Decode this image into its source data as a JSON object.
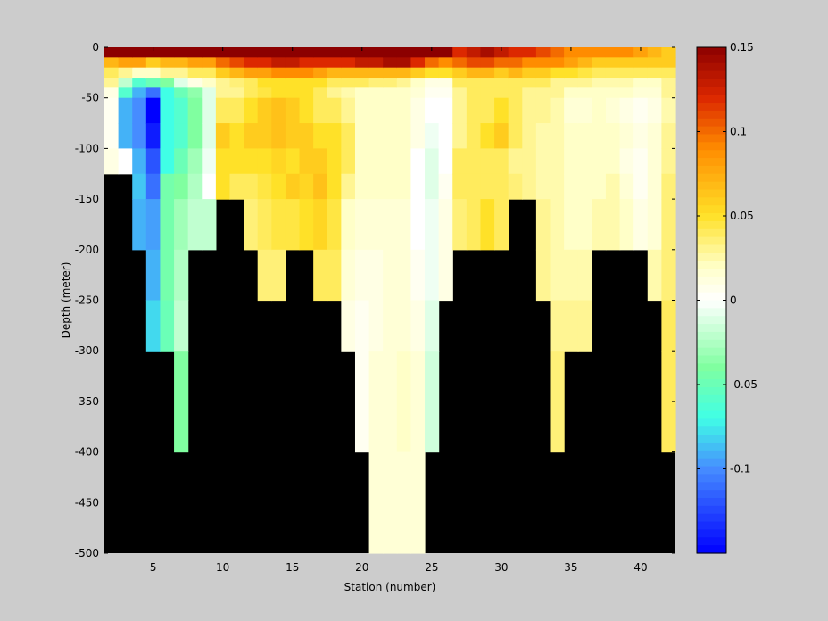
{
  "chart_data": {
    "type": "heatmap",
    "title": "",
    "xlabel": "Station (number)",
    "ylabel": "Depth (meter)",
    "xlim": [
      1.5,
      42.5
    ],
    "ylim": [
      -500,
      0
    ],
    "x_ticks": [
      5,
      10,
      15,
      20,
      25,
      30,
      35,
      40
    ],
    "y_ticks": [
      0,
      -50,
      -100,
      -150,
      -200,
      -250,
      -300,
      -350,
      -400,
      -450,
      -500
    ],
    "colorbar": {
      "range": [
        -0.15,
        0.15
      ],
      "ticks": [
        0.15,
        0.1,
        0.05,
        0,
        -0.05,
        -0.1
      ],
      "tick_labels": [
        "0.15",
        "0.1",
        "0.05",
        "0",
        "-0.05",
        "-0.1"
      ],
      "colormap": "blue-cyan-green-white-yellow-orange-darkred"
    },
    "background_color": "#000000",
    "stations": [
      2,
      3,
      4,
      5,
      6,
      7,
      8,
      9,
      10,
      11,
      12,
      13,
      14,
      15,
      16,
      17,
      18,
      19,
      20,
      21,
      22,
      23,
      24,
      25,
      26,
      27,
      28,
      29,
      30,
      31,
      32,
      33,
      34,
      35,
      36,
      37,
      38,
      39,
      40,
      41,
      42
    ],
    "station_bottom_depth": [
      -125,
      -125,
      -200,
      -300,
      -300,
      -400,
      -200,
      -200,
      -150,
      -150,
      -200,
      -250,
      -250,
      -200,
      -200,
      -250,
      -250,
      -300,
      -400,
      -500,
      -500,
      -500,
      -500,
      -400,
      -250,
      -200,
      -200,
      -200,
      -200,
      -150,
      -150,
      -250,
      -400,
      -300,
      -300,
      -200,
      -200,
      -200,
      -200,
      -250,
      -400
    ],
    "profile_depths": [
      0,
      -10,
      -20,
      -30,
      -40,
      -50,
      -75,
      -100,
      -125,
      -150,
      -200,
      -250,
      -300,
      -400,
      -500
    ],
    "values_by_station": [
      [
        0.15,
        0.07,
        0.04,
        0.03,
        0.01,
        0.005,
        0.005,
        0.01,
        0.015
      ],
      [
        0.15,
        0.08,
        0.03,
        -0.02,
        -0.06,
        -0.09,
        -0.09,
        0.0,
        0.005
      ],
      [
        0.15,
        0.08,
        0.02,
        -0.06,
        -0.09,
        -0.1,
        -0.1,
        -0.09,
        -0.085,
        -0.09,
        -0.085
      ],
      [
        0.15,
        0.06,
        0.02,
        -0.05,
        -0.11,
        -0.15,
        -0.14,
        -0.12,
        -0.11,
        -0.095,
        -0.09,
        -0.08,
        -0.07
      ],
      [
        0.15,
        0.07,
        0.03,
        -0.04,
        -0.07,
        -0.07,
        -0.07,
        -0.07,
        -0.045,
        -0.045,
        -0.045,
        -0.05,
        -0.06
      ],
      [
        0.15,
        0.07,
        0.03,
        -0.01,
        -0.05,
        -0.06,
        -0.06,
        -0.05,
        -0.04,
        -0.03,
        -0.025,
        -0.02,
        -0.04,
        -0.06
      ],
      [
        0.15,
        0.08,
        0.04,
        0.01,
        -0.035,
        -0.04,
        -0.04,
        -0.03,
        -0.025,
        -0.02,
        -0.03
      ],
      [
        0.15,
        0.08,
        0.04,
        0.02,
        -0.01,
        -0.01,
        -0.01,
        -0.005,
        0.0,
        -0.02,
        -0.02
      ],
      [
        0.15,
        0.1,
        0.06,
        0.03,
        0.03,
        0.04,
        0.06,
        0.05,
        0.05,
        0.05
      ],
      [
        0.15,
        0.11,
        0.07,
        0.035,
        0.03,
        0.04,
        0.05,
        0.05,
        0.04,
        0.04
      ],
      [
        0.15,
        0.12,
        0.08,
        0.04,
        0.04,
        0.05,
        0.06,
        0.05,
        0.04,
        0.035,
        0.03
      ],
      [
        0.15,
        0.12,
        0.08,
        0.05,
        0.045,
        0.06,
        0.06,
        0.05,
        0.045,
        0.04,
        0.035,
        0.04
      ],
      [
        0.15,
        0.13,
        0.09,
        0.05,
        0.05,
        0.065,
        0.065,
        0.055,
        0.05,
        0.045,
        0.035,
        0.01
      ],
      [
        0.15,
        0.13,
        0.09,
        0.05,
        0.05,
        0.06,
        0.06,
        0.05,
        0.06,
        0.045,
        0.045
      ],
      [
        0.15,
        0.12,
        0.09,
        0.05,
        0.05,
        0.05,
        0.06,
        0.06,
        0.055,
        0.05,
        0.04
      ],
      [
        0.15,
        0.12,
        0.08,
        0.05,
        0.04,
        0.04,
        0.05,
        0.06,
        0.065,
        0.055,
        0.04,
        0.03
      ],
      [
        0.15,
        0.12,
        0.07,
        0.04,
        0.03,
        0.04,
        0.05,
        0.05,
        0.05,
        0.045,
        0.04,
        0.03
      ],
      [
        0.15,
        0.12,
        0.07,
        0.04,
        0.025,
        0.03,
        0.04,
        0.04,
        0.03,
        0.02,
        0.015,
        0.01,
        0.01
      ],
      [
        0.15,
        0.13,
        0.07,
        0.04,
        0.02,
        0.02,
        0.02,
        0.02,
        0.02,
        0.015,
        0.01,
        0.005,
        0.005,
        0.01
      ],
      [
        0.15,
        0.13,
        0.07,
        0.035,
        0.02,
        0.02,
        0.02,
        0.02,
        0.02,
        0.015,
        0.01,
        0.01,
        0.015,
        0.015,
        0.01
      ],
      [
        0.15,
        0.14,
        0.07,
        0.035,
        0.02,
        0.02,
        0.02,
        0.02,
        0.02,
        0.015,
        0.015,
        0.015,
        0.015,
        0.015,
        0.01
      ],
      [
        0.15,
        0.14,
        0.07,
        0.03,
        0.02,
        0.02,
        0.02,
        0.02,
        0.02,
        0.015,
        0.015,
        0.015,
        0.02,
        0.015,
        0.01
      ],
      [
        0.15,
        0.12,
        0.06,
        0.02,
        0.015,
        0.01,
        0.01,
        0.0,
        0.0,
        0.0,
        0.005,
        0.01,
        0.015,
        0.015,
        0.01
      ],
      [
        0.15,
        0.1,
        0.05,
        0.01,
        0.005,
        0.0,
        -0.005,
        -0.01,
        -0.01,
        -0.005,
        -0.005,
        -0.01,
        -0.015,
        -0.015,
        -0.02
      ],
      [
        0.15,
        0.09,
        0.05,
        0.01,
        0.005,
        0.0,
        0.0,
        0.0,
        0.005,
        0.01,
        0.01,
        0.015,
        0.015,
        0.02
      ],
      [
        0.12,
        0.1,
        0.06,
        0.04,
        0.03,
        0.03,
        0.03,
        0.04,
        0.04,
        0.035,
        0.035,
        0.035
      ],
      [
        0.13,
        0.11,
        0.07,
        0.04,
        0.04,
        0.04,
        0.04,
        0.04,
        0.04,
        0.04,
        0.05
      ],
      [
        0.14,
        0.11,
        0.07,
        0.04,
        0.04,
        0.04,
        0.05,
        0.04,
        0.04,
        0.05,
        0.05
      ],
      [
        0.13,
        0.1,
        0.06,
        0.04,
        0.04,
        0.05,
        0.06,
        0.04,
        0.04,
        0.04,
        0.04
      ],
      [
        0.12,
        0.1,
        0.07,
        0.04,
        0.04,
        0.04,
        0.04,
        0.03,
        0.035,
        0.035
      ],
      [
        0.12,
        0.09,
        0.06,
        0.04,
        0.03,
        0.03,
        0.03,
        0.03,
        0.03,
        0.03
      ],
      [
        0.11,
        0.09,
        0.06,
        0.04,
        0.03,
        0.03,
        0.025,
        0.025,
        0.025,
        0.03,
        0.03,
        0.03
      ],
      [
        0.1,
        0.09,
        0.05,
        0.03,
        0.03,
        0.025,
        0.025,
        0.025,
        0.025,
        0.025,
        0.025,
        0.03,
        0.035,
        0.04
      ],
      [
        0.09,
        0.08,
        0.05,
        0.03,
        0.02,
        0.015,
        0.02,
        0.02,
        0.02,
        0.02,
        0.025,
        0.03,
        0.035
      ],
      [
        0.09,
        0.07,
        0.045,
        0.03,
        0.02,
        0.015,
        0.02,
        0.02,
        0.02,
        0.02,
        0.025,
        0.03,
        0.04
      ],
      [
        0.09,
        0.06,
        0.04,
        0.025,
        0.02,
        0.02,
        0.02,
        0.02,
        0.02,
        0.025,
        0.03
      ],
      [
        0.09,
        0.06,
        0.04,
        0.025,
        0.02,
        0.015,
        0.02,
        0.02,
        0.025,
        0.025,
        0.03
      ],
      [
        0.09,
        0.06,
        0.04,
        0.025,
        0.02,
        0.01,
        0.015,
        0.01,
        0.015,
        0.02,
        0.025
      ],
      [
        0.08,
        0.06,
        0.04,
        0.02,
        0.015,
        0.005,
        0.01,
        0.005,
        0.005,
        0.01,
        0.02
      ],
      [
        0.07,
        0.06,
        0.04,
        0.02,
        0.015,
        0.01,
        0.015,
        0.015,
        0.015,
        0.015,
        0.025,
        0.035
      ],
      [
        0.06,
        0.06,
        0.04,
        0.03,
        0.03,
        0.025,
        0.03,
        0.03,
        0.035,
        0.035,
        0.035,
        0.04,
        0.04,
        0.045
      ]
    ]
  }
}
